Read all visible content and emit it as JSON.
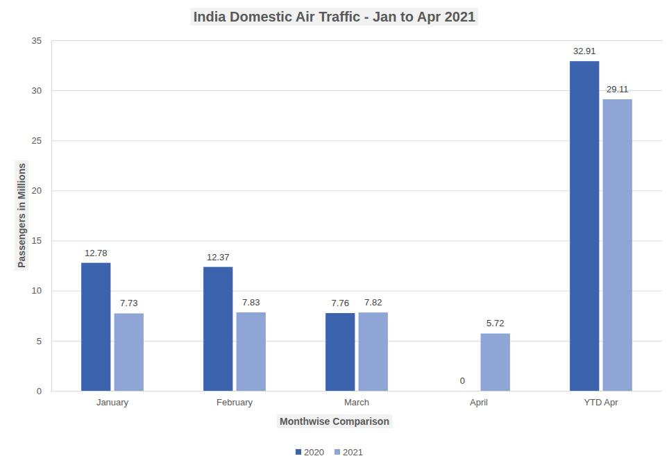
{
  "chart_data": {
    "type": "bar",
    "title": "India Domestic Air Traffic - Jan to Apr 2021",
    "x_label": "Monthwise Comparison",
    "y_label": "Passengers in Millions",
    "categories": [
      "January",
      "February",
      "March",
      "April",
      "YTD Apr"
    ],
    "series": [
      {
        "name": "2020",
        "color": "#3c63ae",
        "values": [
          12.78,
          12.37,
          7.76,
          0,
          32.91
        ]
      },
      {
        "name": "2021",
        "color": "#8ea5d5",
        "values": [
          7.73,
          7.83,
          7.82,
          5.72,
          29.11
        ]
      }
    ],
    "ylim": [
      0,
      35
    ],
    "yticks": [
      0,
      5,
      10,
      15,
      20,
      25,
      30,
      35
    ],
    "grid": true,
    "legend": "bottom",
    "data_labels": true
  }
}
